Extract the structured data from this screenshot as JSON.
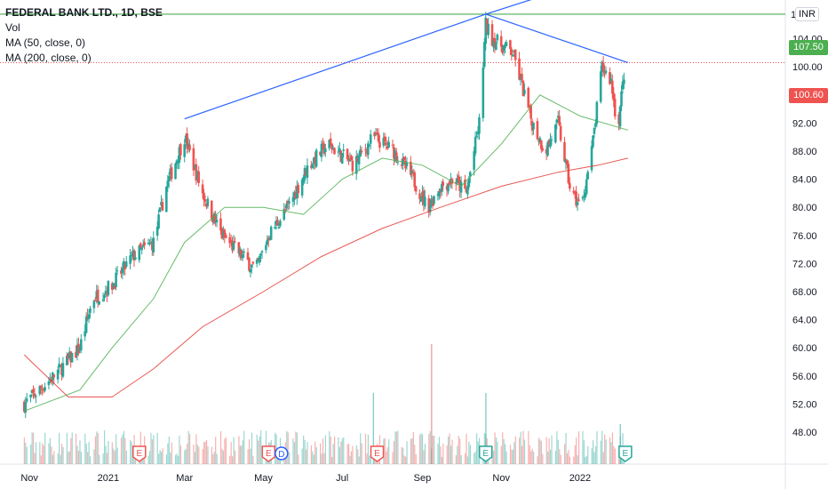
{
  "legend": {
    "title": "FEDERAL BANK LTD., 1D, BSE",
    "vol": "Vol",
    "ma50": "MA (50, close, 0)",
    "ma200": "MA (200, close, 0)"
  },
  "currency_badge": "INR",
  "axis_partial_top": "1",
  "axis_partial_top2": "0",
  "price_tags": {
    "resistance": "107.50",
    "last": "100.60"
  },
  "colors": {
    "up": "#26a69a",
    "down": "#ef5350",
    "ma50": "#4caf50",
    "ma200": "#e53935",
    "trend": "#2962ff",
    "resistance": "#4caf50",
    "last_line": "#ef5350"
  },
  "chart_data": {
    "type": "candlestick",
    "title": "FEDERAL BANK LTD., 1D, BSE",
    "y_ticks": [
      "104.00",
      "100.00",
      "96.00",
      "92.00",
      "88.00",
      "84.00",
      "80.00",
      "76.00",
      "72.00",
      "68.00",
      "64.00",
      "60.00",
      "56.00",
      "52.00",
      "48.00"
    ],
    "x_ticks": [
      "Nov",
      "2021",
      "Mar",
      "May",
      "Jul",
      "Sep",
      "Nov",
      "2022"
    ],
    "ylim": [
      46.5,
      111
    ],
    "horizontal_lines": [
      {
        "name": "resistance",
        "value": 107.5
      },
      {
        "name": "last_price",
        "value": 100.6
      }
    ],
    "trendlines": [
      {
        "from": {
          "date": "2021-03-01",
          "price": 92.6
        },
        "to": {
          "date": "2021-10-20",
          "price": 107.5
        }
      },
      {
        "from": {
          "date": "2021-10-20",
          "price": 107.5
        },
        "to": {
          "date": "2022-02-07",
          "price": 100.6
        }
      },
      {
        "from": {
          "date": "2021-10-20",
          "price": 107.5
        },
        "to": {
          "date": "2022-02-07",
          "price": 114.0
        }
      }
    ],
    "price_path": [
      {
        "date": "2020-10-28",
        "price": 52
      },
      {
        "date": "2020-11-20",
        "price": 56
      },
      {
        "date": "2020-12-10",
        "price": 60
      },
      {
        "date": "2020-12-20",
        "price": 67
      },
      {
        "date": "2020-12-28",
        "price": 68
      },
      {
        "date": "2021-01-04",
        "price": 69
      },
      {
        "date": "2021-01-20",
        "price": 73
      },
      {
        "date": "2021-02-05",
        "price": 75
      },
      {
        "date": "2021-02-15",
        "price": 83
      },
      {
        "date": "2021-03-01",
        "price": 90
      },
      {
        "date": "2021-03-15",
        "price": 82
      },
      {
        "date": "2021-03-30",
        "price": 76
      },
      {
        "date": "2021-04-15",
        "price": 73
      },
      {
        "date": "2021-04-25",
        "price": 71
      },
      {
        "date": "2021-05-05",
        "price": 76
      },
      {
        "date": "2021-05-20",
        "price": 80
      },
      {
        "date": "2021-06-05",
        "price": 86
      },
      {
        "date": "2021-06-20",
        "price": 89
      },
      {
        "date": "2021-07-10",
        "price": 86
      },
      {
        "date": "2021-07-25",
        "price": 90
      },
      {
        "date": "2021-08-10",
        "price": 88
      },
      {
        "date": "2021-08-25",
        "price": 84
      },
      {
        "date": "2021-09-05",
        "price": 80
      },
      {
        "date": "2021-09-15",
        "price": 83
      },
      {
        "date": "2021-09-25",
        "price": 84
      },
      {
        "date": "2021-10-05",
        "price": 82
      },
      {
        "date": "2021-10-15",
        "price": 92
      },
      {
        "date": "2021-10-20",
        "price": 106
      },
      {
        "date": "2021-10-25",
        "price": 104
      },
      {
        "date": "2021-11-10",
        "price": 102
      },
      {
        "date": "2021-11-25",
        "price": 92
      },
      {
        "date": "2021-12-05",
        "price": 88
      },
      {
        "date": "2021-12-15",
        "price": 92
      },
      {
        "date": "2021-12-25",
        "price": 82
      },
      {
        "date": "2022-01-02",
        "price": 80
      },
      {
        "date": "2022-01-10",
        "price": 88
      },
      {
        "date": "2022-01-18",
        "price": 100
      },
      {
        "date": "2022-01-25",
        "price": 98
      },
      {
        "date": "2022-01-30",
        "price": 91
      },
      {
        "date": "2022-02-05",
        "price": 100.6
      }
    ],
    "ma50_path": [
      {
        "date": "2020-10-28",
        "price": 51
      },
      {
        "date": "2020-12-10",
        "price": 54
      },
      {
        "date": "2021-01-04",
        "price": 60
      },
      {
        "date": "2021-02-05",
        "price": 67
      },
      {
        "date": "2021-03-01",
        "price": 75
      },
      {
        "date": "2021-04-01",
        "price": 80
      },
      {
        "date": "2021-05-01",
        "price": 80
      },
      {
        "date": "2021-06-01",
        "price": 79
      },
      {
        "date": "2021-07-01",
        "price": 84
      },
      {
        "date": "2021-08-01",
        "price": 87
      },
      {
        "date": "2021-09-01",
        "price": 86
      },
      {
        "date": "2021-10-01",
        "price": 83
      },
      {
        "date": "2021-11-01",
        "price": 89
      },
      {
        "date": "2021-12-01",
        "price": 96
      },
      {
        "date": "2022-01-01",
        "price": 93
      },
      {
        "date": "2022-02-07",
        "price": 91
      }
    ],
    "ma200_path": [
      {
        "date": "2020-10-28",
        "price": 59
      },
      {
        "date": "2020-12-01",
        "price": 53
      },
      {
        "date": "2021-01-04",
        "price": 53
      },
      {
        "date": "2021-02-05",
        "price": 57
      },
      {
        "date": "2021-03-15",
        "price": 63
      },
      {
        "date": "2021-05-01",
        "price": 68
      },
      {
        "date": "2021-06-15",
        "price": 73
      },
      {
        "date": "2021-08-01",
        "price": 77
      },
      {
        "date": "2021-09-15",
        "price": 80
      },
      {
        "date": "2021-11-01",
        "price": 83
      },
      {
        "date": "2021-12-15",
        "price": 85
      },
      {
        "date": "2022-01-15",
        "price": 86
      },
      {
        "date": "2022-02-07",
        "price": 87
      }
    ],
    "events": [
      {
        "date": "2021-01-25",
        "label": "E"
      },
      {
        "date": "2021-05-05",
        "label": "E"
      },
      {
        "date": "2021-05-15",
        "label": "D"
      },
      {
        "date": "2021-07-28",
        "label": "E"
      },
      {
        "date": "2021-10-20",
        "label": "E"
      },
      {
        "date": "2022-02-05",
        "label": "E"
      }
    ]
  }
}
